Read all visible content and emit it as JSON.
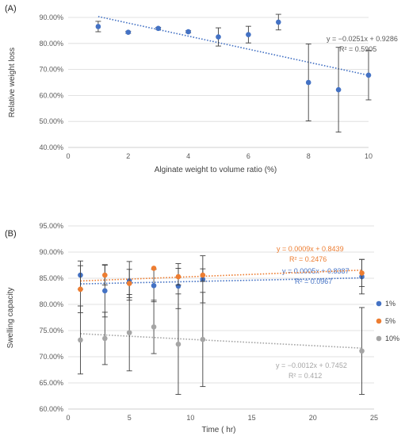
{
  "chart_data": [
    {
      "type": "scatter",
      "panel_label": "(A)",
      "xlabel": "Alginate weight to volume ratio (%)",
      "ylabel": "Relative weight loss",
      "xlim": [
        0,
        10
      ],
      "ylim": [
        0.4,
        0.9
      ],
      "x_ticks": [
        0,
        2,
        4,
        6,
        8,
        10
      ],
      "y_ticks": [
        "40.00%",
        "50.00%",
        "60.00%",
        "70.00%",
        "80.00%",
        "90.00%"
      ],
      "y_tick_values": [
        0.4,
        0.5,
        0.6,
        0.7,
        0.8,
        0.9
      ],
      "grid": true,
      "series": [
        {
          "color": "#4472C4",
          "x": [
            1,
            2,
            3,
            4,
            5,
            6,
            7,
            8,
            9,
            10
          ],
          "y": [
            0.865,
            0.843,
            0.858,
            0.845,
            0.825,
            0.834,
            0.882,
            0.65,
            0.622,
            0.678
          ],
          "error": [
            0.02,
            0.004,
            0.004,
            0.004,
            0.035,
            0.032,
            0.03,
            0.148,
            0.163,
            0.095
          ],
          "trendline": {
            "slope": -0.0251,
            "intercept": 0.9286,
            "equation": "y = −0.0251x + 0.9286",
            "r2": "R² = 0.5905"
          }
        }
      ]
    },
    {
      "type": "scatter",
      "panel_label": "(B)",
      "xlabel": "Time ( hr)",
      "ylabel": "Swelling capacity",
      "xlim": [
        0,
        25
      ],
      "ylim": [
        0.6,
        0.95
      ],
      "x_ticks": [
        0,
        5,
        10,
        15,
        20,
        25
      ],
      "y_ticks": [
        "60.00%",
        "65.00%",
        "70.00%",
        "75.00%",
        "80.00%",
        "85.00%",
        "90.00%",
        "95.00%"
      ],
      "y_tick_values": [
        0.6,
        0.65,
        0.7,
        0.75,
        0.8,
        0.85,
        0.9,
        0.95
      ],
      "grid": true,
      "legend_position": "right",
      "series": [
        {
          "name": "1%",
          "color": "#4472C4",
          "x": [
            1,
            3,
            5,
            7,
            9,
            11,
            24
          ],
          "y": [
            0.856,
            0.826,
            0.845,
            0.836,
            0.835,
            0.848,
            0.853
          ],
          "error": [
            0.027,
            0.05,
            0.037,
            0.031,
            0.043,
            0.045,
            0.033
          ],
          "trendline": {
            "slope": 0.0005,
            "intercept": 0.8387,
            "equation": "y = 0.0005x + 0.8387",
            "r2": "R² = 0.0967"
          }
        },
        {
          "name": "5%",
          "color": "#ED7D31",
          "x": [
            1,
            3,
            5,
            7,
            9,
            11,
            24
          ],
          "y": [
            0.829,
            0.856,
            0.84,
            0.869,
            0.853,
            0.856,
            0.86
          ],
          "error": [
            0.045,
            0.019,
            0.027,
            0.0,
            0.016,
            0.012,
            0.026
          ],
          "trendline": {
            "slope": 0.0009,
            "intercept": 0.8439,
            "equation": "y = 0.0009x + 0.8439",
            "r2": "R² = 0.2476"
          }
        },
        {
          "name": "10%",
          "color": "#A5A5A5",
          "x": [
            1,
            3,
            5,
            7,
            9,
            11,
            24
          ],
          "y": [
            0.732,
            0.735,
            0.746,
            0.757,
            0.724,
            0.733,
            0.711
          ],
          "error": [
            0.065,
            0.05,
            0.073,
            0.051,
            0.096,
            0.09,
            0.083
          ],
          "trendline": {
            "slope": -0.0012,
            "intercept": 0.7452,
            "equation": "y = −0.0012x + 0.7452",
            "r2": "R² = 0.412"
          }
        }
      ]
    }
  ]
}
